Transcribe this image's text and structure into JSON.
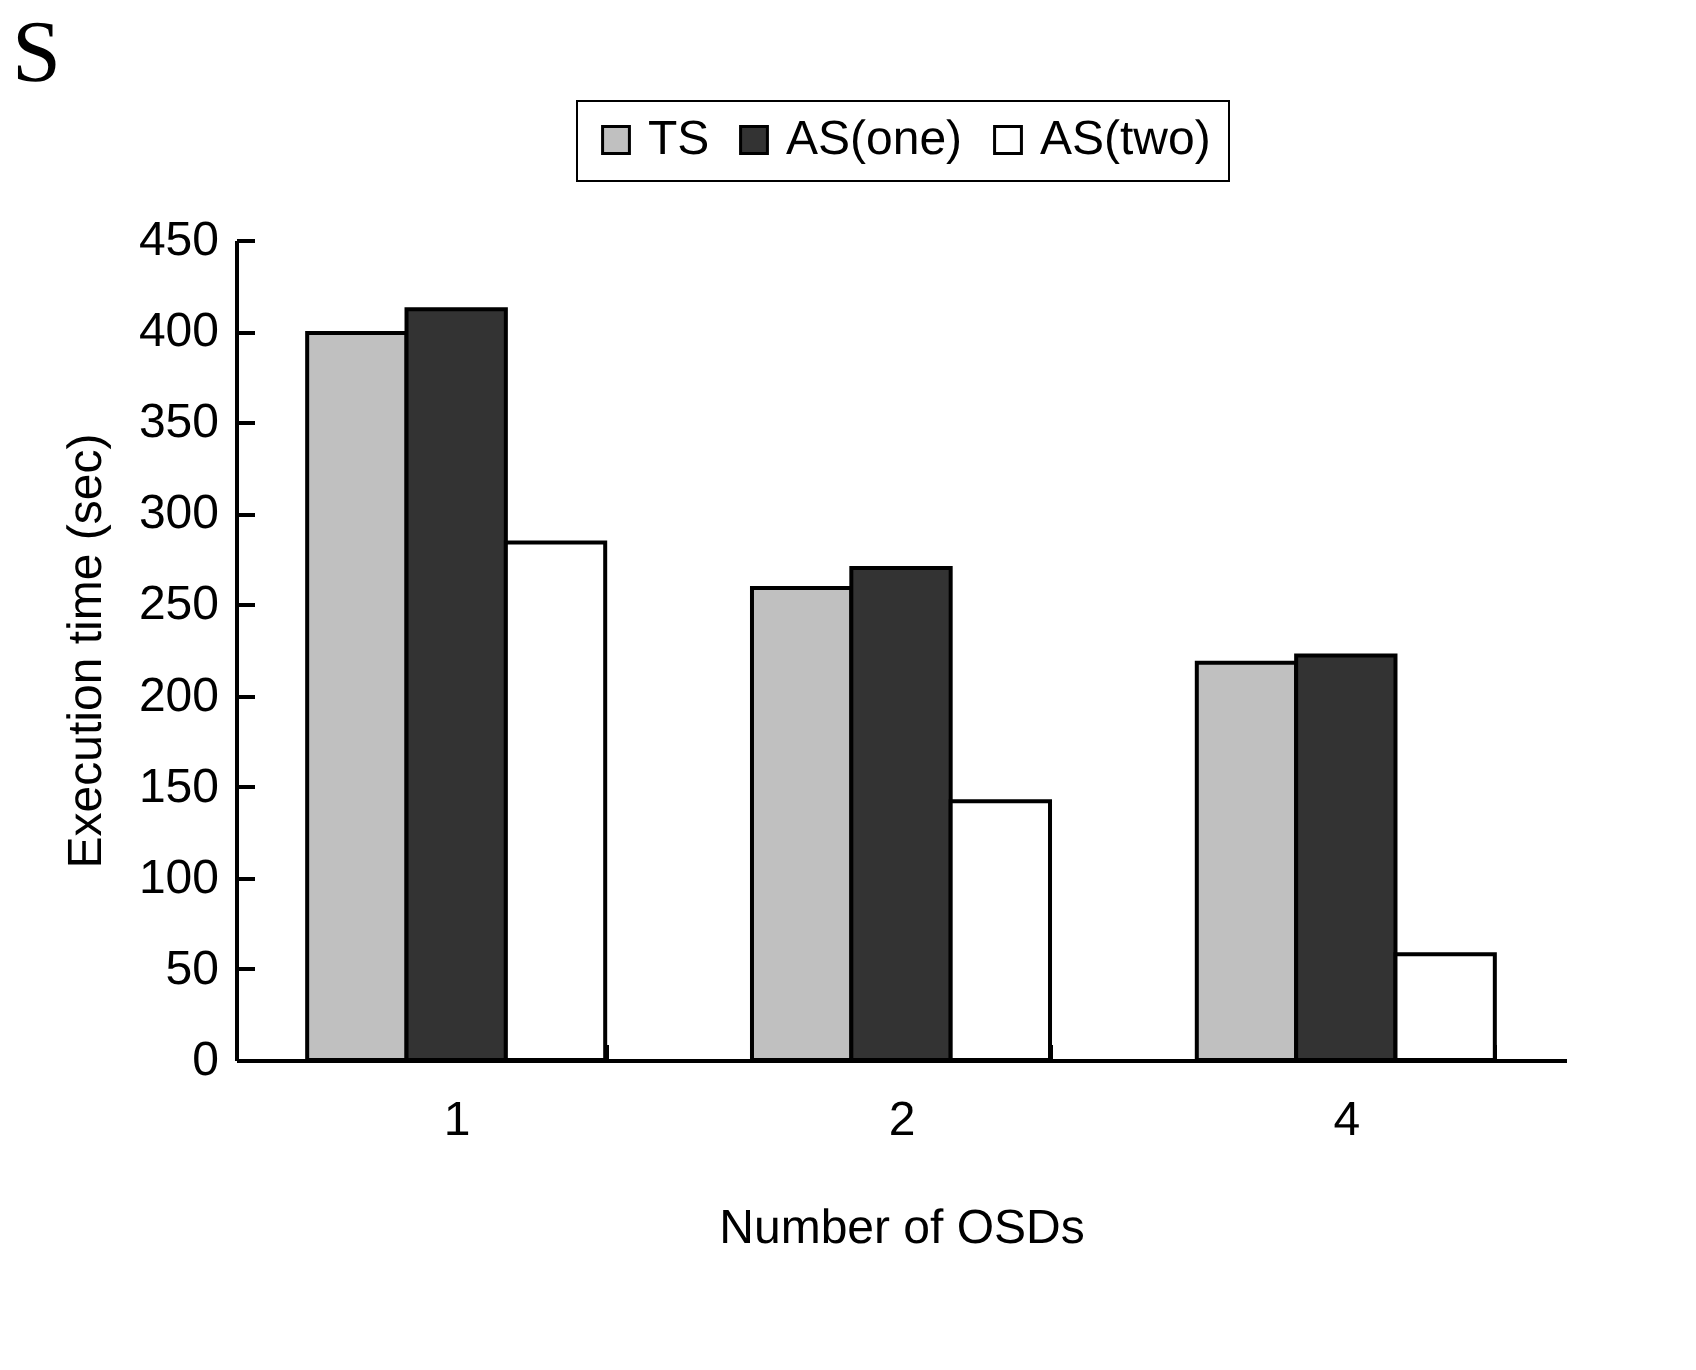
{
  "chart_data": {
    "type": "bar",
    "title": "S",
    "xlabel": "Number of OSDs",
    "ylabel": "Execution time (sec)",
    "categories": [
      "1",
      "2",
      "4"
    ],
    "series": [
      {
        "name": "TS",
        "color": "#c0c0c0",
        "values": [
          399,
          259,
          218
        ]
      },
      {
        "name": "AS(one)",
        "color": "#333333",
        "values": [
          412,
          270,
          222
        ]
      },
      {
        "name": "AS(two)",
        "color": "#ffffff",
        "values": [
          284,
          142,
          58
        ]
      }
    ],
    "ylim": [
      0,
      450
    ],
    "yticks": [
      0,
      50,
      100,
      150,
      200,
      250,
      300,
      350,
      400,
      450
    ],
    "legend": "top",
    "grid": false
  }
}
